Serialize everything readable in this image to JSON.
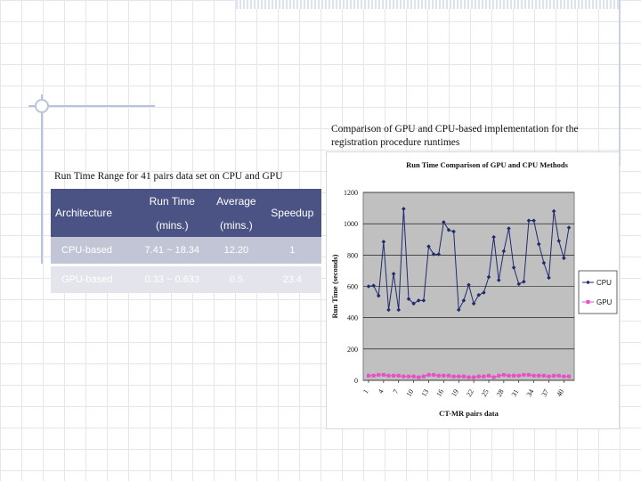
{
  "chart_caption": "Comparison of GPU and CPU-based implementation for the registration procedure runtimes",
  "table": {
    "caption": "Run Time Range for 41 pairs data set on CPU and GPU",
    "headers": {
      "architecture": "Architecture",
      "run_time": "Run Time",
      "run_time_unit": "(mins.)",
      "average": "Average",
      "average_unit": "(mins.)",
      "speedup": "Speedup"
    },
    "rows": [
      {
        "architecture": "CPU-based",
        "run_time": "7.41 ~ 18.34",
        "average": "12.20",
        "speedup": "1"
      },
      {
        "architecture": "GPU-based",
        "run_time": "0.33 ~ 0.633",
        "average": "0.5",
        "speedup": "23.4"
      }
    ],
    "colors": {
      "header_bg": "#4a5383",
      "row1_bg": "#c2c5d6",
      "row2_bg": "#e3e4ec"
    }
  },
  "chart_data": {
    "type": "line",
    "title": "Run Time Comparison of GPU and CPU Methods",
    "xlabel": "CT-MR pairs data",
    "ylabel": "Run Time (seconds)",
    "ylim": [
      0,
      1200
    ],
    "yticks": [
      "0",
      "200",
      "400",
      "600",
      "800",
      "1000",
      "1200"
    ],
    "xtick_labels": [
      "1",
      "4",
      "7",
      "10",
      "13",
      "16",
      "19",
      "22",
      "25",
      "28",
      "31",
      "34",
      "37",
      "40"
    ],
    "x": [
      1,
      2,
      3,
      4,
      5,
      6,
      7,
      8,
      9,
      10,
      11,
      12,
      13,
      14,
      15,
      16,
      17,
      18,
      19,
      20,
      21,
      22,
      23,
      24,
      25,
      26,
      27,
      28,
      29,
      30,
      31,
      32,
      33,
      34,
      35,
      36,
      37,
      38,
      39,
      40,
      41
    ],
    "grid": "horizontal",
    "plot_background": "#c0c0c0",
    "legend": "right",
    "series": [
      {
        "name": "CPU",
        "color": "#1f2a6e",
        "marker": "diamond",
        "values": [
          600,
          605,
          540,
          885,
          450,
          680,
          450,
          1095,
          520,
          490,
          510,
          510,
          855,
          805,
          805,
          1010,
          960,
          950,
          450,
          510,
          610,
          490,
          545,
          560,
          660,
          915,
          640,
          825,
          970,
          720,
          615,
          630,
          1020,
          1020,
          870,
          750,
          655,
          1080,
          890,
          780,
          975
        ]
      },
      {
        "name": "GPU",
        "color": "#e84ec8",
        "marker": "square",
        "values": [
          30,
          30,
          35,
          35,
          30,
          30,
          30,
          25,
          25,
          25,
          20,
          25,
          35,
          35,
          30,
          30,
          30,
          25,
          25,
          25,
          20,
          20,
          25,
          25,
          30,
          20,
          30,
          35,
          30,
          30,
          30,
          35,
          35,
          30,
          30,
          30,
          25,
          30,
          30,
          25,
          25
        ]
      }
    ]
  }
}
